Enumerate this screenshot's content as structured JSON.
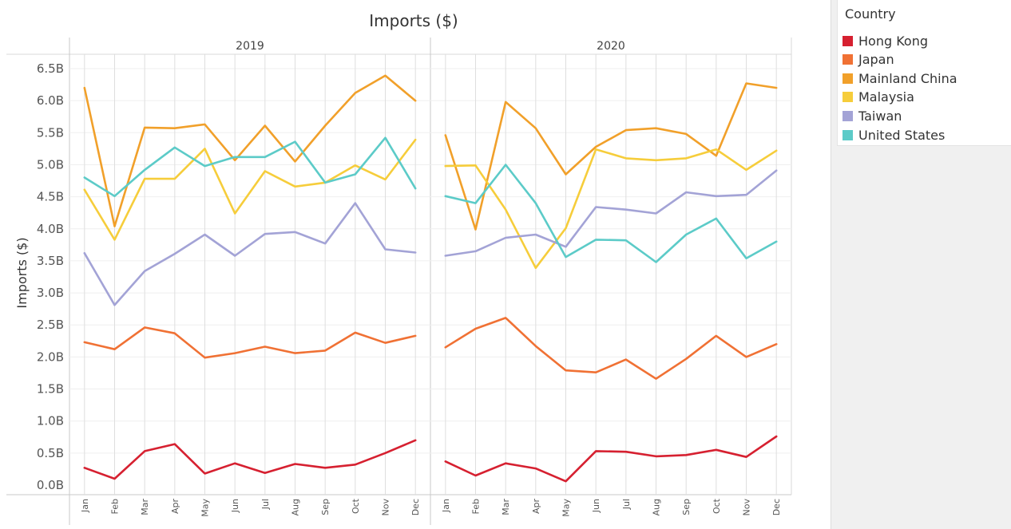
{
  "chart_data": {
    "type": "line",
    "title": "Imports ($)",
    "ylabel": "Imports ($)",
    "xlabel": "",
    "ylim": [
      0,
      6.5
    ],
    "y_ticks": [
      0,
      0.5,
      1.0,
      1.5,
      2.0,
      2.5,
      3.0,
      3.5,
      4.0,
      4.5,
      5.0,
      5.5,
      6.0,
      6.5
    ],
    "y_tick_labels": [
      "0.0B",
      "0.5B",
      "1.0B",
      "1.5B",
      "2.0B",
      "2.5B",
      "3.0B",
      "3.5B",
      "4.0B",
      "4.5B",
      "5.0B",
      "5.5B",
      "6.0B",
      "6.5B"
    ],
    "categories": [
      "Jan",
      "Feb",
      "Mar",
      "Apr",
      "May",
      "Jun",
      "Jul",
      "Aug",
      "Sep",
      "Oct",
      "Nov",
      "Dec"
    ],
    "grid": true,
    "legend_position": "top-right",
    "legend_title": "Country",
    "panels": [
      {
        "label": "2019",
        "series": [
          {
            "name": "Hong Kong",
            "color": "#d62030",
            "values": [
              0.27,
              0.1,
              0.53,
              0.64,
              0.18,
              0.34,
              0.19,
              0.33,
              0.27,
              0.32,
              0.5,
              0.7
            ]
          },
          {
            "name": "Japan",
            "color": "#f07134",
            "values": [
              2.23,
              2.12,
              2.46,
              2.37,
              1.99,
              2.06,
              2.16,
              2.06,
              2.1,
              2.38,
              2.22,
              2.33
            ]
          },
          {
            "name": "Mainland China",
            "color": "#f1a02a",
            "values": [
              6.2,
              4.04,
              5.58,
              5.57,
              5.63,
              5.07,
              5.61,
              5.05,
              5.61,
              6.12,
              6.39,
              6.0
            ]
          },
          {
            "name": "Malaysia",
            "color": "#f6cd3b",
            "values": [
              4.61,
              3.83,
              4.78,
              4.78,
              5.25,
              4.24,
              4.9,
              4.66,
              4.72,
              4.99,
              4.77,
              5.39
            ]
          },
          {
            "name": "Taiwan",
            "color": "#a3a3d6",
            "values": [
              3.62,
              2.81,
              3.34,
              3.61,
              3.91,
              3.58,
              3.92,
              3.95,
              3.77,
              4.4,
              3.68,
              3.63
            ]
          },
          {
            "name": "United States",
            "color": "#5ccbc8",
            "values": [
              4.8,
              4.51,
              4.92,
              5.27,
              4.98,
              5.12,
              5.12,
              5.36,
              4.72,
              4.85,
              5.42,
              4.63
            ]
          }
        ]
      },
      {
        "label": "2020",
        "series": [
          {
            "name": "Hong Kong",
            "color": "#d62030",
            "values": [
              0.37,
              0.15,
              0.34,
              0.26,
              0.06,
              0.53,
              0.52,
              0.45,
              0.47,
              0.55,
              0.44,
              0.76
            ]
          },
          {
            "name": "Japan",
            "color": "#f07134",
            "values": [
              2.15,
              2.44,
              2.61,
              2.17,
              1.79,
              1.76,
              1.96,
              1.66,
              1.97,
              2.33,
              2.0,
              2.2
            ]
          },
          {
            "name": "Mainland China",
            "color": "#f1a02a",
            "values": [
              5.46,
              3.99,
              5.98,
              5.57,
              4.85,
              5.28,
              5.54,
              5.57,
              5.48,
              5.14,
              6.27,
              6.2
            ]
          },
          {
            "name": "Malaysia",
            "color": "#f6cd3b",
            "values": [
              4.98,
              4.99,
              4.3,
              3.39,
              4.01,
              5.24,
              5.1,
              5.07,
              5.1,
              5.24,
              4.92,
              5.22
            ]
          },
          {
            "name": "Taiwan",
            "color": "#a3a3d6",
            "values": [
              3.58,
              3.65,
              3.86,
              3.91,
              3.72,
              4.34,
              4.3,
              4.24,
              4.57,
              4.51,
              4.53,
              4.91
            ]
          },
          {
            "name": "United States",
            "color": "#5ccbc8",
            "values": [
              4.51,
              4.4,
              5.0,
              4.4,
              3.56,
              3.83,
              3.82,
              3.48,
              3.91,
              4.16,
              3.54,
              3.8
            ]
          }
        ]
      }
    ]
  }
}
